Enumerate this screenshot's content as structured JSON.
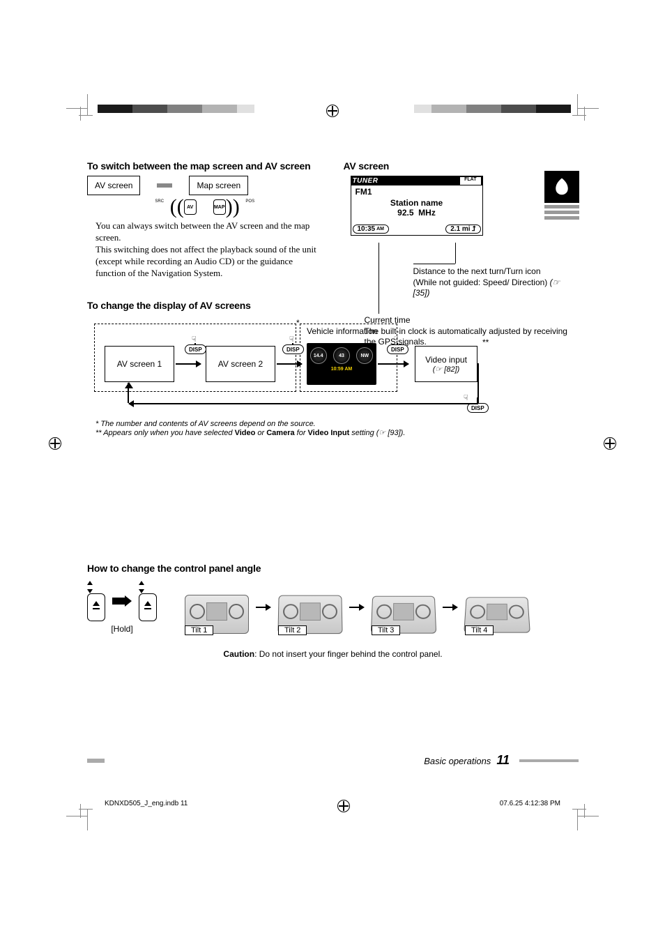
{
  "header": {
    "sec1_title": "To switch between the map screen and AV screen",
    "sec2_title": "AV screen"
  },
  "switch_diagram": {
    "left_label": "AV screen",
    "right_label": "Map screen",
    "buttons": [
      "SRC",
      "AV",
      "MAP",
      "POS"
    ],
    "body_text": "You can always switch between the AV screen and the map screen.\nThis switching does not affect the playback sound of the unit (except while recording an Audio CD) or the guidance function of the Navigation System."
  },
  "av_screen": {
    "top_left": "TUNER",
    "top_right": "FLAT",
    "band": "FM1",
    "station_label": "Station name",
    "freq_value": "92.5",
    "freq_unit": "MHz",
    "time": "10:35",
    "ampm": "AM",
    "dist": "2.1 mi",
    "callout1_l1": "Distance to the next turn/Turn",
    "callout1_l2": "icon",
    "callout1_l3": "(While not guided: Speed/",
    "callout1_l4": "Direction) ",
    "callout1_ref": "(☞ [35])",
    "callout2_l1": "Current time",
    "callout2_l2": "The built-in clock is automatically adjusted by receiving the GPS signals."
  },
  "change_display": {
    "title": "To change the display of AV screens",
    "vehicle_info": "Vehicle information",
    "av1": "AV screen 1",
    "av2": "AV screen 2",
    "disp": "DISP",
    "video_input_l1": "Video input",
    "video_input_ref": "(☞ [82])",
    "gauges": {
      "v": "14.4",
      "v_unit": "V",
      "s": "43",
      "s_unit": "mph",
      "d": "NW"
    },
    "gauge_time": "10:59 AM",
    "fn1": "*   The number and contents of AV screens depend on the source.",
    "fn2_a": "** Appears only when you have selected ",
    "fn2_b1": "Video",
    "fn2_c": " or ",
    "fn2_b2": "Camera",
    "fn2_d": " for ",
    "fn2_b3": "Video Input",
    "fn2_e": " setting (☞ [93])."
  },
  "angle": {
    "title": "How to change the control panel angle",
    "hold": "[Hold]",
    "tilts": [
      "Tilt 1",
      "Tilt 2",
      "Tilt 3",
      "Tilt 4"
    ],
    "caution_b": "Caution",
    "caution_t": ": Do not insert your finger behind the control panel."
  },
  "footer": {
    "section": "Basic operations",
    "page": "11"
  },
  "print": {
    "left": "KDNXD505_J_eng.indb   11",
    "right": "07.6.25   4:12:38 PM"
  },
  "colors": {
    "grad": [
      "#1a1a1a",
      "#1a1a1a",
      "#4d4d4d",
      "#4d4d4d",
      "#808080",
      "#808080",
      "#b3b3b3",
      "#b3b3b3",
      "#e0e0e0",
      "#ffffff"
    ]
  }
}
